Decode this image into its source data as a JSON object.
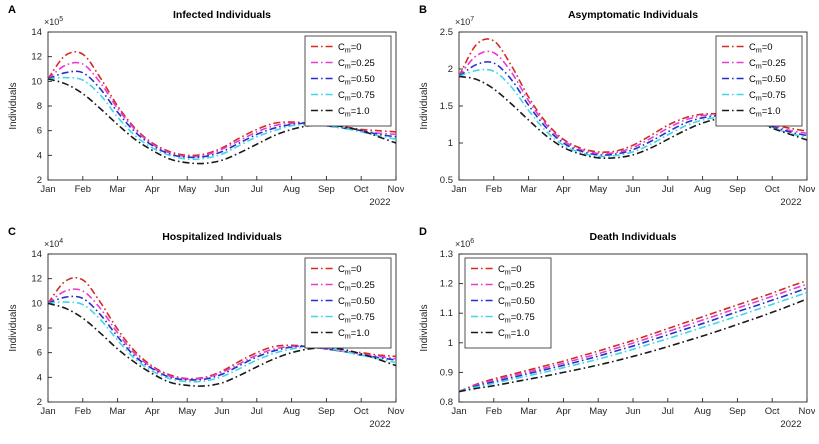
{
  "figure": {
    "months": [
      "Jan",
      "Feb",
      "Mar",
      "Apr",
      "May",
      "Jun",
      "Jul",
      "Aug",
      "Sep",
      "Oct",
      "Nov"
    ],
    "year_label": "2022",
    "ylabel": "Individuals",
    "axis_color": "#262626",
    "colors": [
      "#d42a20",
      "#e83ad8",
      "#2431c8",
      "#3fd6e8",
      "#1a1a1a"
    ],
    "legend": [
      {
        "base": "C",
        "sub": "m",
        "rest": "=0"
      },
      {
        "base": "C",
        "sub": "m",
        "rest": "=0.25"
      },
      {
        "base": "C",
        "sub": "m",
        "rest": "=0.50"
      },
      {
        "base": "C",
        "sub": "m",
        "rest": "=0.75"
      },
      {
        "base": "C",
        "sub": "m",
        "rest": "=1.0"
      }
    ]
  },
  "chart_data": [
    {
      "id": "A",
      "label": "A",
      "type": "line",
      "title": "Infected Individuals",
      "exponent": "×10^5",
      "xlabel": "",
      "ylabel": "Individuals",
      "ylim": [
        2,
        14
      ],
      "yticks": [
        2,
        4,
        6,
        8,
        10,
        12,
        14
      ],
      "ytick_labels": [
        "2",
        "4",
        "6",
        "8",
        "10",
        "12",
        "14"
      ],
      "legend_position": "top-right",
      "x": [
        0,
        0.5,
        1,
        1.5,
        2,
        2.5,
        3,
        3.5,
        4,
        4.5,
        5,
        5.5,
        6,
        6.5,
        7,
        7.5,
        8,
        8.5,
        9,
        9.5,
        10
      ],
      "series": [
        {
          "name": "C_m=0",
          "values": [
            10.2,
            12.1,
            12.2,
            10.3,
            8.0,
            6.2,
            5.0,
            4.3,
            4.0,
            4.1,
            4.6,
            5.4,
            6.1,
            6.6,
            6.7,
            6.6,
            6.4,
            6.3,
            6.1,
            6.0,
            5.9
          ]
        },
        {
          "name": "C_m=0.25",
          "values": [
            10.2,
            11.3,
            11.4,
            9.9,
            7.8,
            6.1,
            4.9,
            4.2,
            3.9,
            4.0,
            4.5,
            5.2,
            5.9,
            6.4,
            6.6,
            6.6,
            6.4,
            6.2,
            6.0,
            5.8,
            5.7
          ]
        },
        {
          "name": "C_m=0.50",
          "values": [
            10.2,
            10.7,
            10.7,
            9.4,
            7.5,
            5.9,
            4.8,
            4.1,
            3.85,
            3.9,
            4.3,
            5.0,
            5.7,
            6.2,
            6.5,
            6.6,
            6.4,
            6.2,
            6.0,
            5.7,
            5.5
          ]
        },
        {
          "name": "C_m=0.75",
          "values": [
            10.2,
            10.3,
            10.1,
            8.9,
            7.1,
            5.6,
            4.6,
            4.0,
            3.7,
            3.75,
            4.1,
            4.8,
            5.5,
            6.0,
            6.4,
            6.5,
            6.4,
            6.2,
            5.9,
            5.6,
            5.3
          ]
        },
        {
          "name": "C_m=1.0",
          "values": [
            10.2,
            9.8,
            9.0,
            7.8,
            6.5,
            5.3,
            4.4,
            3.7,
            3.4,
            3.35,
            3.6,
            4.2,
            4.9,
            5.6,
            6.1,
            6.4,
            6.5,
            6.3,
            6.0,
            5.5,
            5.0
          ]
        }
      ]
    },
    {
      "id": "B",
      "label": "B",
      "type": "line",
      "title": "Asymptomatic Individuals",
      "exponent": "×10^7",
      "xlabel": "",
      "ylabel": "Individuals",
      "ylim": [
        0.5,
        2.5
      ],
      "yticks": [
        0.5,
        1,
        1.5,
        2,
        2.5
      ],
      "ytick_labels": [
        "0.5",
        "1",
        "1.5",
        "2",
        "2.5"
      ],
      "legend_position": "top-right",
      "x": [
        0,
        0.5,
        1,
        1.5,
        2,
        2.5,
        3,
        3.5,
        4,
        4.5,
        5,
        5.5,
        6,
        6.5,
        7,
        7.5,
        8,
        8.5,
        9,
        9.5,
        10
      ],
      "series": [
        {
          "name": "C_m=0",
          "values": [
            1.9,
            2.33,
            2.38,
            2.05,
            1.62,
            1.28,
            1.05,
            0.93,
            0.88,
            0.89,
            0.97,
            1.1,
            1.24,
            1.34,
            1.39,
            1.39,
            1.35,
            1.3,
            1.25,
            1.2,
            1.16
          ]
        },
        {
          "name": "C_m=0.25",
          "values": [
            1.9,
            2.18,
            2.22,
            1.96,
            1.57,
            1.25,
            1.03,
            0.91,
            0.86,
            0.87,
            0.94,
            1.06,
            1.2,
            1.31,
            1.37,
            1.38,
            1.35,
            1.29,
            1.23,
            1.17,
            1.13
          ]
        },
        {
          "name": "C_m=0.50",
          "values": [
            1.9,
            2.06,
            2.08,
            1.86,
            1.51,
            1.21,
            1.0,
            0.89,
            0.84,
            0.85,
            0.91,
            1.02,
            1.15,
            1.27,
            1.34,
            1.37,
            1.35,
            1.29,
            1.22,
            1.15,
            1.1
          ]
        },
        {
          "name": "C_m=0.75",
          "values": [
            1.9,
            1.98,
            1.97,
            1.76,
            1.44,
            1.16,
            0.97,
            0.87,
            0.82,
            0.83,
            0.88,
            0.98,
            1.11,
            1.23,
            1.31,
            1.35,
            1.34,
            1.29,
            1.21,
            1.13,
            1.08
          ]
        },
        {
          "name": "C_m=1.0",
          "values": [
            1.9,
            1.86,
            1.73,
            1.53,
            1.31,
            1.1,
            0.94,
            0.85,
            0.8,
            0.8,
            0.84,
            0.93,
            1.05,
            1.17,
            1.27,
            1.33,
            1.34,
            1.3,
            1.2,
            1.12,
            1.04
          ]
        }
      ]
    },
    {
      "id": "C",
      "label": "C",
      "type": "line",
      "title": "Hospitalized Individuals",
      "exponent": "×10^4",
      "xlabel": "",
      "ylabel": "Individuals",
      "ylim": [
        2,
        14
      ],
      "yticks": [
        2,
        4,
        6,
        8,
        10,
        12,
        14
      ],
      "ytick_labels": [
        "2",
        "4",
        "6",
        "8",
        "10",
        "12",
        "14"
      ],
      "legend_position": "top-right",
      "x": [
        0,
        0.5,
        1,
        1.5,
        2,
        2.5,
        3,
        3.5,
        4,
        4.5,
        5,
        5.5,
        6,
        6.5,
        7,
        7.5,
        8,
        8.5,
        9,
        9.5,
        10
      ],
      "series": [
        {
          "name": "C_m=0",
          "values": [
            10.0,
            11.8,
            11.9,
            10.1,
            7.9,
            6.1,
            4.9,
            4.2,
            3.9,
            4.0,
            4.5,
            5.3,
            6.0,
            6.5,
            6.6,
            6.5,
            6.3,
            6.1,
            6.0,
            5.8,
            5.7
          ]
        },
        {
          "name": "C_m=0.25",
          "values": [
            10.0,
            11.0,
            11.0,
            9.6,
            7.6,
            5.9,
            4.8,
            4.1,
            3.85,
            3.95,
            4.4,
            5.1,
            5.8,
            6.3,
            6.5,
            6.5,
            6.3,
            6.1,
            5.9,
            5.7,
            5.5
          ]
        },
        {
          "name": "C_m=0.50",
          "values": [
            10.0,
            10.5,
            10.4,
            9.1,
            7.3,
            5.7,
            4.7,
            4.0,
            3.8,
            3.85,
            4.25,
            4.95,
            5.65,
            6.15,
            6.45,
            6.5,
            6.3,
            6.1,
            5.8,
            5.6,
            5.4
          ]
        },
        {
          "name": "C_m=0.75",
          "values": [
            10.0,
            10.1,
            9.9,
            8.7,
            7.0,
            5.5,
            4.5,
            3.9,
            3.65,
            3.7,
            4.05,
            4.7,
            5.4,
            5.95,
            6.3,
            6.45,
            6.35,
            6.1,
            5.8,
            5.5,
            5.2
          ]
        },
        {
          "name": "C_m=1.0",
          "values": [
            10.0,
            9.6,
            8.8,
            7.6,
            6.3,
            5.2,
            4.3,
            3.6,
            3.35,
            3.3,
            3.55,
            4.15,
            4.85,
            5.5,
            6.0,
            6.3,
            6.4,
            6.25,
            5.9,
            5.45,
            4.95
          ]
        }
      ]
    },
    {
      "id": "D",
      "label": "D",
      "type": "line",
      "title": "Death Individuals",
      "exponent": "×10^6",
      "xlabel": "",
      "ylabel": "Individuals",
      "ylim": [
        0.8,
        1.3
      ],
      "yticks": [
        0.8,
        0.9,
        1,
        1.1,
        1.2,
        1.3
      ],
      "ytick_labels": [
        "0.8",
        "0.9",
        "1",
        "1.1",
        "1.2",
        "1.3"
      ],
      "legend_position": "top-left",
      "x": [
        0,
        0.5,
        1,
        1.5,
        2,
        2.5,
        3,
        3.5,
        4,
        4.5,
        5,
        5.5,
        6,
        6.5,
        7,
        7.5,
        8,
        8.5,
        9,
        9.5,
        10
      ],
      "series": [
        {
          "name": "C_m=0",
          "values": [
            0.835,
            0.86,
            0.878,
            0.893,
            0.908,
            0.923,
            0.938,
            0.955,
            0.972,
            0.99,
            1.008,
            1.028,
            1.048,
            1.068,
            1.088,
            1.108,
            1.128,
            1.148,
            1.168,
            1.19,
            1.21
          ]
        },
        {
          "name": "C_m=0.25",
          "values": [
            0.835,
            0.857,
            0.873,
            0.888,
            0.902,
            0.916,
            0.931,
            0.947,
            0.963,
            0.981,
            0.999,
            1.018,
            1.038,
            1.057,
            1.077,
            1.097,
            1.117,
            1.137,
            1.157,
            1.178,
            1.198
          ]
        },
        {
          "name": "C_m=0.50",
          "values": [
            0.835,
            0.854,
            0.868,
            0.882,
            0.896,
            0.91,
            0.924,
            0.939,
            0.955,
            0.972,
            0.989,
            1.008,
            1.027,
            1.046,
            1.065,
            1.085,
            1.105,
            1.124,
            1.144,
            1.164,
            1.185
          ]
        },
        {
          "name": "C_m=0.75",
          "values": [
            0.835,
            0.851,
            0.863,
            0.876,
            0.889,
            0.902,
            0.916,
            0.93,
            0.945,
            0.961,
            0.978,
            0.996,
            1.014,
            1.033,
            1.052,
            1.071,
            1.09,
            1.11,
            1.13,
            1.15,
            1.17
          ]
        },
        {
          "name": "C_m=1.0",
          "values": [
            0.835,
            0.846,
            0.855,
            0.866,
            0.877,
            0.888,
            0.9,
            0.912,
            0.925,
            0.939,
            0.954,
            0.97,
            0.987,
            1.005,
            1.023,
            1.042,
            1.062,
            1.082,
            1.103,
            1.125,
            1.148
          ]
        }
      ]
    }
  ]
}
